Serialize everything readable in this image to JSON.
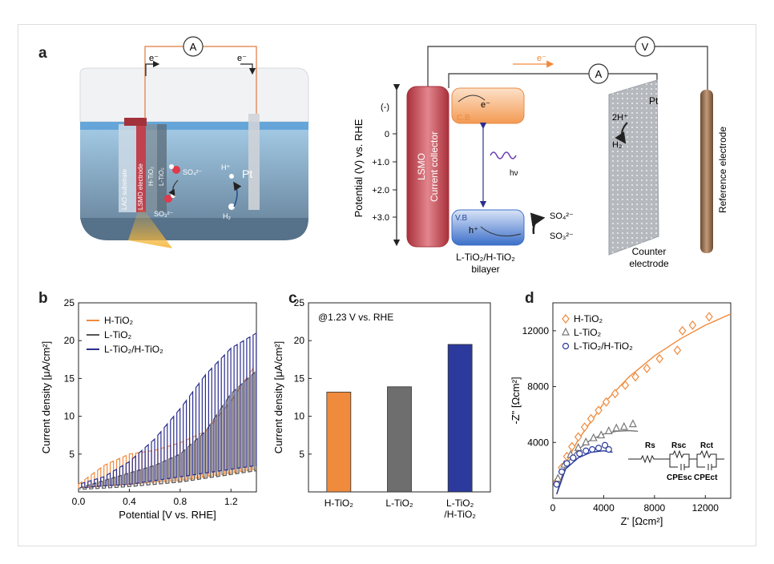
{
  "panels": {
    "a": {
      "label": "a",
      "cell": {
        "ammeter": "A",
        "electron_left": "e⁻",
        "electron_right": "e⁻",
        "layer_labels": [
          "LAO substrate",
          "LSMO electrode",
          "H-TiO₂",
          "L-TiO₂"
        ],
        "sulfate": "SO₄²⁻",
        "sulfite": "SO₃²⁻",
        "proton": "H⁺",
        "hydrogen": "H₂",
        "pt": "Pt"
      },
      "band": {
        "voltmeter": "V",
        "ammeter": "A",
        "electron": "e⁻",
        "yaxis_label": "Potential (V) vs. RHE",
        "yticks": [
          "(-)",
          "0",
          "+1.0",
          "+2.0",
          "+3.0"
        ],
        "collector_label_1": "LSMO",
        "collector_label_2": "Current collector",
        "cb": "C.B",
        "vb": "V.B",
        "electron_cb": "e⁻",
        "hole": "h⁺",
        "photon": "hν",
        "sulfate": "SO₄²⁻",
        "sulfite": "SO₃²⁻",
        "bilayer_1": "L-TiO₂/H-TiO₂",
        "bilayer_2": "bilayer",
        "proton": "2H⁺",
        "hydrogen": "H₂",
        "pt": "Pt",
        "counter_1": "Counter",
        "counter_2": "electrode",
        "reference": "Reference electrode"
      },
      "colors": {
        "lsmo": "#c73a45",
        "cb": "#f39a53",
        "vb": "#3c6fc9",
        "orange": "#f08a3c",
        "blue": "#2b2e8f"
      }
    },
    "b": {
      "label": "b"
    },
    "c": {
      "label": "c"
    },
    "d": {
      "label": "d"
    }
  },
  "chart_data": [
    {
      "id": "b",
      "type": "line",
      "xlabel": "Potential [V vs. RHE]",
      "ylabel": "Current density [μA/cm²]",
      "xlim": [
        0.0,
        1.4
      ],
      "ylim": [
        0,
        25
      ],
      "xticks": [
        "0.0",
        "0.4",
        "0.8",
        "1.2"
      ],
      "yticks": [
        "5",
        "10",
        "15",
        "20",
        "25"
      ],
      "legend_position": "top-left",
      "chopped": true,
      "series": [
        {
          "name": "H-TiO₂",
          "color": "#f08a3c",
          "x": [
            0.0,
            0.2,
            0.4,
            0.6,
            0.8,
            1.0,
            1.2,
            1.4
          ],
          "light": [
            1.0,
            3.5,
            5.0,
            5.5,
            6.5,
            8.0,
            12.0,
            17.0
          ],
          "dark": [
            0.5,
            0.8,
            1.0,
            1.3,
            1.5,
            2.0,
            2.5,
            3.0
          ]
        },
        {
          "name": "L-TiO₂",
          "color": "#555555",
          "x": [
            0.0,
            0.2,
            0.4,
            0.6,
            0.8,
            1.0,
            1.2,
            1.4
          ],
          "light": [
            0.5,
            1.5,
            2.5,
            3.5,
            5.0,
            8.0,
            13.0,
            16.0
          ],
          "dark": [
            0.3,
            0.5,
            0.7,
            1.0,
            1.3,
            1.8,
            2.3,
            2.8
          ]
        },
        {
          "name": "L-TiO₂/H-TiO₂",
          "color": "#2b2e8f",
          "x": [
            0.0,
            0.2,
            0.4,
            0.6,
            0.8,
            1.0,
            1.2,
            1.4
          ],
          "light": [
            1.0,
            2.0,
            4.0,
            7.0,
            11.0,
            15.5,
            19.0,
            21.0
          ],
          "dark": [
            0.5,
            0.8,
            1.0,
            1.5,
            2.0,
            2.5,
            3.0,
            3.5
          ]
        }
      ]
    },
    {
      "id": "c",
      "type": "bar",
      "annotation": "@1.23 V vs. RHE",
      "ylabel": "Current density [μA/cm²]",
      "ylim": [
        0,
        25
      ],
      "yticks": [
        "5",
        "10",
        "15",
        "20",
        "25"
      ],
      "categories": [
        "H-TiO₂",
        "L-TiO₂",
        "L-TiO₂/H-TiO₂"
      ],
      "category_lines": [
        [
          "H-TiO₂"
        ],
        [
          "L-TiO₂"
        ],
        [
          "L-TiO₂",
          "/H-TiO₂"
        ]
      ],
      "values": [
        13.2,
        13.9,
        19.5
      ],
      "colors": [
        "#f08a3c",
        "#6e6e6e",
        "#2b3a9c"
      ]
    },
    {
      "id": "d",
      "type": "scatter",
      "xlabel": "Z' [Ωcm²]",
      "ylabel": "-Z\" [Ωcm²]",
      "xlim": [
        0,
        14000
      ],
      "ylim": [
        0,
        14000
      ],
      "xticks": [
        "0",
        "4000",
        "8000",
        "12000"
      ],
      "yticks": [
        "4000",
        "8000",
        "12000"
      ],
      "legend_position": "top-left",
      "circuit": {
        "rs": "Rs",
        "rsc": "Rsc",
        "rct": "Rct",
        "cpesc": "CPEsc",
        "cpect": "CPEct"
      },
      "series": [
        {
          "name": "H-TiO₂",
          "color": "#f08a3c",
          "marker": "diamond",
          "x": [
            300,
            700,
            1100,
            1500,
            2000,
            2500,
            3000,
            3600,
            4200,
            4900,
            5700,
            6500,
            7400,
            8400,
            9800,
            10200,
            11000,
            12300
          ],
          "y": [
            1200,
            2200,
            3000,
            3700,
            4400,
            5100,
            5700,
            6300,
            6900,
            7500,
            8100,
            8700,
            9300,
            10000,
            10600,
            12000,
            12400,
            13000
          ],
          "fit_x": [
            300,
            1000,
            2000,
            4000,
            6000,
            8000,
            10000,
            12000,
            14000
          ],
          "fit_y": [
            300,
            2500,
            4200,
            6800,
            8700,
            10200,
            11400,
            12400,
            13200
          ]
        },
        {
          "name": "L-TiO₂",
          "color": "#777777",
          "marker": "triangle",
          "x": [
            400,
            900,
            1400,
            2000,
            2600,
            3200,
            3800,
            4400,
            5000,
            5600,
            6300
          ],
          "y": [
            1400,
            2400,
            3100,
            3600,
            4000,
            4300,
            4500,
            4800,
            5000,
            5100,
            5300
          ],
          "fit_x": [
            300,
            1000,
            2000,
            3000,
            4000,
            5000,
            6000,
            6700
          ],
          "fit_y": [
            300,
            2400,
            3500,
            4200,
            4600,
            4800,
            4850,
            4800
          ]
        },
        {
          "name": "L-TiO₂/H-TiO₂",
          "color": "#2b3a9c",
          "marker": "circle",
          "x": [
            300,
            700,
            1100,
            1600,
            2100,
            2600,
            3100,
            3600,
            4100,
            4400
          ],
          "y": [
            1000,
            1900,
            2500,
            2900,
            3200,
            3400,
            3500,
            3600,
            3800,
            3500
          ],
          "fit_x": [
            300,
            1000,
            2000,
            3000,
            4000,
            4700
          ],
          "fit_y": [
            300,
            2100,
            2900,
            3300,
            3400,
            3300
          ]
        }
      ]
    }
  ]
}
